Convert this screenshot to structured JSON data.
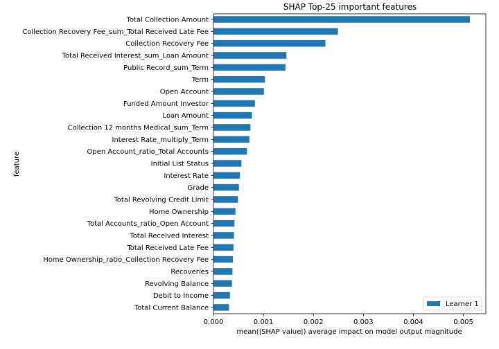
{
  "chart_data": {
    "type": "bar",
    "orientation": "horizontal",
    "title": "SHAP Top-25 important features",
    "xlabel": "mean(|SHAP value|) average impact on model output magnitude",
    "ylabel": "feature",
    "xlim": [
      0,
      0.00545
    ],
    "xticks": [
      0,
      0.001,
      0.002,
      0.003,
      0.004,
      0.005
    ],
    "xtick_labels": [
      "0.000",
      "0.001",
      "0.002",
      "0.003",
      "0.004",
      "0.005"
    ],
    "grid": false,
    "legend_position": "lower-right",
    "bar_color": "#1f77b4",
    "categories": [
      "Total Collection Amount",
      "Collection Recovery Fee_sum_Total Received Late Fee",
      "Collection Recovery Fee",
      "Total Received Interest_sum_Loan Amount",
      "Public Record_sum_Term",
      "Term",
      "Open Account",
      "Funded Amount Investor",
      "Loan Amount",
      "Collection 12 months Medical_sum_Term",
      "Interest Rate_multiply_Term",
      "Open Account_ratio_Total Accounts",
      "Initial List Status",
      "Interest Rate",
      "Grade",
      "Total Revolving Credit Limit",
      "Home Ownership",
      "Total Accounts_ratio_Open Account",
      "Total Received Interest",
      "Total Received Late Fee",
      "Home Ownership_ratio_Collection Recovery Fee",
      "Recoveries",
      "Revolving Balance",
      "Debit to Income",
      "Total Current Balance"
    ],
    "series": [
      {
        "name": "Learner 1",
        "values": [
          0.00513,
          0.00249,
          0.00224,
          0.00146,
          0.00144,
          0.00103,
          0.00101,
          0.00083,
          0.00077,
          0.00074,
          0.00072,
          0.00067,
          0.00056,
          0.00053,
          0.00051,
          0.00049,
          0.00044,
          0.00042,
          0.00041,
          0.0004,
          0.00039,
          0.00038,
          0.00037,
          0.00033,
          0.00031
        ]
      }
    ]
  }
}
